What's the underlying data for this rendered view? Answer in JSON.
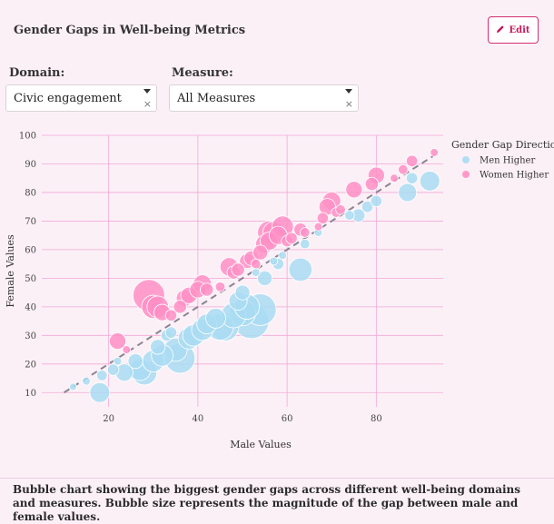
{
  "header": {
    "title": "Gender Gaps in Well-being Metrics",
    "edit_label": "Edit"
  },
  "filters": {
    "domain": {
      "label": "Domain:",
      "value": "Civic engagement"
    },
    "measure": {
      "label": "Measure:",
      "value": "All Measures"
    }
  },
  "colors": {
    "men_higher": "#a9dcf2",
    "women_higher": "#ff8fc6",
    "diagonal": "#8a8592",
    "grid": "#f2a9d6",
    "background": "#fcf0f7"
  },
  "chart_data": {
    "type": "scatter",
    "xlabel": "Male Values",
    "ylabel": "Female Values",
    "xlim": [
      5,
      95
    ],
    "ylim": [
      5,
      100
    ],
    "x_ticks": [
      20,
      40,
      60,
      80
    ],
    "y_ticks": [
      10,
      20,
      30,
      40,
      50,
      60,
      70,
      80,
      90,
      100
    ],
    "grid": true,
    "reference_line": "y = x",
    "legend": {
      "title": "Gender Gap Direction",
      "position": "right",
      "entries": [
        "Men Higher",
        "Women Higher"
      ]
    },
    "series": [
      {
        "name": "Men Higher",
        "color": "#a9dcf2",
        "points": [
          {
            "x": 12,
            "y": 12,
            "gap": 0.5
          },
          {
            "x": 15,
            "y": 14,
            "gap": 1
          },
          {
            "x": 18,
            "y": 10,
            "gap": 8
          },
          {
            "x": 18.5,
            "y": 16,
            "gap": 2.5
          },
          {
            "x": 21,
            "y": 18,
            "gap": 3
          },
          {
            "x": 22,
            "y": 21,
            "gap": 1
          },
          {
            "x": 23.5,
            "y": 17,
            "gap": 6.5
          },
          {
            "x": 26,
            "y": 21,
            "gap": 5
          },
          {
            "x": 27,
            "y": 18,
            "gap": 9
          },
          {
            "x": 28,
            "y": 17,
            "gap": 11
          },
          {
            "x": 30,
            "y": 21,
            "gap": 9
          },
          {
            "x": 31,
            "y": 26,
            "gap": 5
          },
          {
            "x": 32,
            "y": 23,
            "gap": 9
          },
          {
            "x": 33,
            "y": 30,
            "gap": 3
          },
          {
            "x": 34,
            "y": 31,
            "gap": 3
          },
          {
            "x": 35,
            "y": 25,
            "gap": 10
          },
          {
            "x": 36,
            "y": 22,
            "gap": 14
          },
          {
            "x": 38,
            "y": 29,
            "gap": 9
          },
          {
            "x": 39,
            "y": 30,
            "gap": 9
          },
          {
            "x": 41,
            "y": 32,
            "gap": 9
          },
          {
            "x": 42,
            "y": 34,
            "gap": 8
          },
          {
            "x": 44,
            "y": 36,
            "gap": 8
          },
          {
            "x": 45,
            "y": 33,
            "gap": 12
          },
          {
            "x": 46,
            "y": 33,
            "gap": 13
          },
          {
            "x": 48,
            "y": 37,
            "gap": 11
          },
          {
            "x": 49,
            "y": 42,
            "gap": 7
          },
          {
            "x": 50,
            "y": 45,
            "gap": 5
          },
          {
            "x": 50,
            "y": 38,
            "gap": 12
          },
          {
            "x": 51,
            "y": 40,
            "gap": 11
          },
          {
            "x": 52,
            "y": 35,
            "gap": 17
          },
          {
            "x": 53,
            "y": 52,
            "gap": 1
          },
          {
            "x": 54,
            "y": 39,
            "gap": 15
          },
          {
            "x": 55,
            "y": 50,
            "gap": 5
          },
          {
            "x": 57,
            "y": 56,
            "gap": 1
          },
          {
            "x": 58,
            "y": 55,
            "gap": 3
          },
          {
            "x": 59,
            "y": 58,
            "gap": 1
          },
          {
            "x": 63,
            "y": 53,
            "gap": 10
          },
          {
            "x": 64,
            "y": 62,
            "gap": 2
          },
          {
            "x": 67,
            "y": 66,
            "gap": 1
          },
          {
            "x": 74,
            "y": 72,
            "gap": 2
          },
          {
            "x": 76,
            "y": 72,
            "gap": 4
          },
          {
            "x": 78,
            "y": 75,
            "gap": 3
          },
          {
            "x": 80,
            "y": 77,
            "gap": 3
          },
          {
            "x": 87,
            "y": 80,
            "gap": 7
          },
          {
            "x": 88,
            "y": 85,
            "gap": 3
          },
          {
            "x": 92,
            "y": 84,
            "gap": 8
          }
        ]
      },
      {
        "name": "Women Higher",
        "color": "#ff8fc6",
        "points": [
          {
            "x": 22,
            "y": 28,
            "gap": 6
          },
          {
            "x": 24,
            "y": 25,
            "gap": 1
          },
          {
            "x": 29,
            "y": 44,
            "gap": 15
          },
          {
            "x": 30,
            "y": 40,
            "gap": 10
          },
          {
            "x": 31,
            "y": 40,
            "gap": 9
          },
          {
            "x": 32,
            "y": 38,
            "gap": 6
          },
          {
            "x": 34,
            "y": 37,
            "gap": 3
          },
          {
            "x": 36,
            "y": 40,
            "gap": 4
          },
          {
            "x": 37,
            "y": 43,
            "gap": 6
          },
          {
            "x": 38,
            "y": 44,
            "gap": 6
          },
          {
            "x": 40,
            "y": 46,
            "gap": 6
          },
          {
            "x": 41,
            "y": 48,
            "gap": 7
          },
          {
            "x": 42,
            "y": 46,
            "gap": 4
          },
          {
            "x": 45,
            "y": 47,
            "gap": 2
          },
          {
            "x": 47,
            "y": 54,
            "gap": 7
          },
          {
            "x": 48,
            "y": 52,
            "gap": 4
          },
          {
            "x": 49,
            "y": 53,
            "gap": 4
          },
          {
            "x": 51,
            "y": 56,
            "gap": 5
          },
          {
            "x": 52,
            "y": 57,
            "gap": 5
          },
          {
            "x": 53,
            "y": 55,
            "gap": 2
          },
          {
            "x": 54,
            "y": 59,
            "gap": 5
          },
          {
            "x": 55,
            "y": 62,
            "gap": 7
          },
          {
            "x": 56,
            "y": 66,
            "gap": 10
          },
          {
            "x": 56,
            "y": 63,
            "gap": 7
          },
          {
            "x": 57,
            "y": 66,
            "gap": 9
          },
          {
            "x": 58,
            "y": 65,
            "gap": 7
          },
          {
            "x": 59,
            "y": 68,
            "gap": 9
          },
          {
            "x": 60,
            "y": 63,
            "gap": 3
          },
          {
            "x": 61,
            "y": 64,
            "gap": 3
          },
          {
            "x": 63,
            "y": 67,
            "gap": 4
          },
          {
            "x": 64,
            "y": 66,
            "gap": 2
          },
          {
            "x": 67,
            "y": 68,
            "gap": 1
          },
          {
            "x": 68,
            "y": 71,
            "gap": 3
          },
          {
            "x": 69,
            "y": 75,
            "gap": 6
          },
          {
            "x": 70,
            "y": 77,
            "gap": 7
          },
          {
            "x": 71,
            "y": 73,
            "gap": 2
          },
          {
            "x": 72,
            "y": 74,
            "gap": 2
          },
          {
            "x": 75,
            "y": 81,
            "gap": 6
          },
          {
            "x": 79,
            "y": 83,
            "gap": 4
          },
          {
            "x": 80,
            "y": 86,
            "gap": 6
          },
          {
            "x": 84,
            "y": 85,
            "gap": 1
          },
          {
            "x": 86,
            "y": 88,
            "gap": 2
          },
          {
            "x": 88,
            "y": 91,
            "gap": 3
          },
          {
            "x": 93,
            "y": 94,
            "gap": 1
          }
        ]
      }
    ]
  },
  "caption": "Bubble chart showing the biggest gender gaps across different well-being domains and measures. Bubble size represents the magnitude of the gap between male and female values."
}
